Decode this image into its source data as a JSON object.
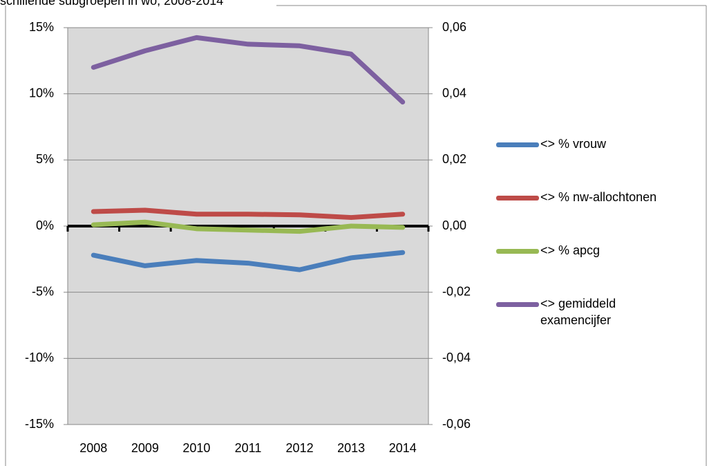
{
  "chart_data": {
    "type": "line",
    "title": "schillende subgroepen in wo, 2008-2014",
    "categories": [
      "2008",
      "2009",
      "2010",
      "2011",
      "2012",
      "2013",
      "2014"
    ],
    "series": [
      {
        "name": "<> % vrouw",
        "color": "#4a7ebb",
        "values": [
          -2.2,
          -3.0,
          -2.6,
          -2.8,
          -3.3,
          -2.4,
          -2.0
        ]
      },
      {
        "name": "<> % nw-allochtonen",
        "color": "#be4b48",
        "values": [
          1.1,
          1.2,
          0.9,
          0.9,
          0.85,
          0.65,
          0.9
        ]
      },
      {
        "name": "<> % apcg",
        "color": "#98b954",
        "values": [
          0.1,
          0.3,
          -0.2,
          -0.3,
          -0.4,
          0.0,
          -0.1
        ]
      },
      {
        "name": "<> gemiddeld examencijfer",
        "color": "#7d60a0",
        "axis": "y2",
        "values": [
          0.048,
          0.053,
          0.057,
          0.055,
          0.0545,
          0.052,
          0.0375
        ]
      }
    ],
    "ylim": [
      -15,
      15
    ],
    "yticks": [
      {
        "value": -15,
        "label": "-15%"
      },
      {
        "value": -10,
        "label": "-10%"
      },
      {
        "value": -5,
        "label": "-5%"
      },
      {
        "value": 0,
        "label": "0%"
      },
      {
        "value": 5,
        "label": "5%"
      },
      {
        "value": 10,
        "label": "10%"
      },
      {
        "value": 15,
        "label": "15%"
      }
    ],
    "y2lim": [
      -0.06,
      0.06
    ],
    "y2ticks": [
      {
        "value": -0.06,
        "label": "-0,06"
      },
      {
        "value": -0.04,
        "label": "-0,04"
      },
      {
        "value": -0.02,
        "label": "-0,02"
      },
      {
        "value": 0,
        "label": "0,00"
      },
      {
        "value": 0.02,
        "label": "0,02"
      },
      {
        "value": 0.04,
        "label": "0,04"
      },
      {
        "value": 0.06,
        "label": "0,06"
      }
    ],
    "grid": true,
    "plot_background": "#d9d9d9",
    "legend": "right"
  }
}
